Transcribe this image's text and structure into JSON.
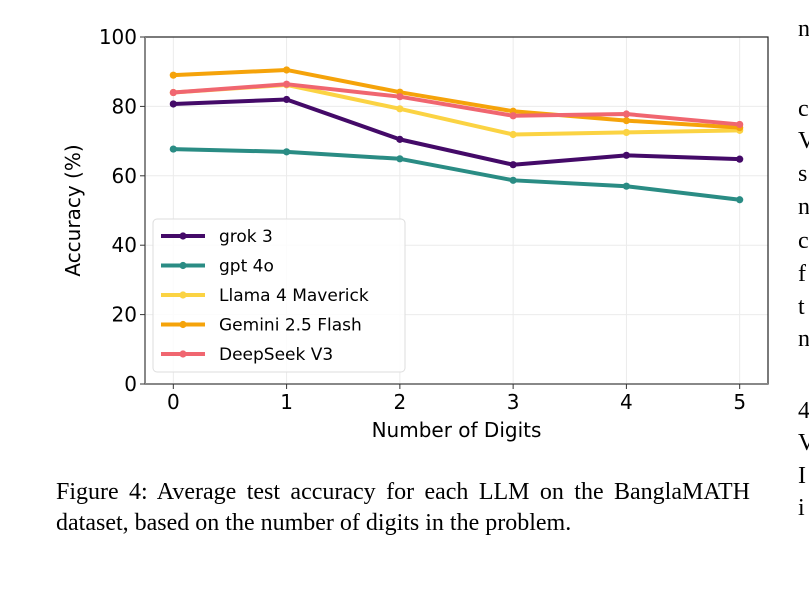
{
  "chart_data": {
    "type": "line",
    "title": "",
    "xlabel": "Number of Digits",
    "ylabel": "Accuracy (%)",
    "x": [
      0,
      1,
      2,
      3,
      4,
      5
    ],
    "xlim": [
      -0.25,
      5.25
    ],
    "ylim": [
      0,
      100
    ],
    "xticks": [
      "0",
      "1",
      "2",
      "3",
      "4",
      "5"
    ],
    "yticks": [
      "0",
      "20",
      "40",
      "60",
      "80",
      "100"
    ],
    "grid": true,
    "legend_position": "lower-left",
    "series": [
      {
        "name": "grok 3",
        "color": "#440a68",
        "values": [
          80.7,
          82.0,
          70.5,
          63.2,
          65.9,
          64.8
        ]
      },
      {
        "name": "gpt 4o",
        "color": "#2a8c84",
        "values": [
          67.7,
          66.9,
          64.9,
          58.7,
          57.0,
          53.1
        ]
      },
      {
        "name": "Llama 4 Maverick",
        "color": "#fbd343",
        "values": [
          84.0,
          86.2,
          79.3,
          71.9,
          72.5,
          73.1
        ]
      },
      {
        "name": "Gemini 2.5 Flash",
        "color": "#f5a30a",
        "values": [
          89.0,
          90.5,
          84.1,
          78.6,
          75.9,
          73.9
        ]
      },
      {
        "name": "DeepSeek V3",
        "color": "#f06670",
        "values": [
          84.0,
          86.4,
          82.8,
          77.3,
          77.8,
          74.8
        ]
      }
    ]
  },
  "caption": "Figure 4:  Average test accuracy for each LLM on the BanglaMATH dataset, based on the number of digits in the problem.",
  "side_fragments": [
    "n",
    "c",
    "V",
    "s",
    "n",
    "c",
    "f",
    "t",
    "n",
    "4",
    "V",
    "I",
    "i"
  ]
}
